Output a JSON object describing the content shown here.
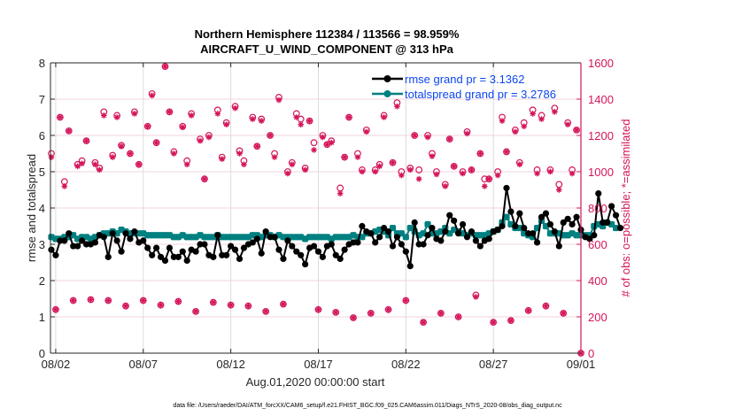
{
  "chart_data": {
    "type": "line",
    "title": "Northern Hemisphere 112384 / 113566 = 98.959%",
    "subtitle": "AIRCRAFT_U_WIND_COMPONENT @ 313 hPa",
    "xlabel": "Aug.01,2020 00:00:00 start",
    "ylabel": "rmse and totalspread",
    "y2label": "# of obs: o=possible; *=assimilated",
    "xlim_days": [
      0.7,
      31
    ],
    "ylim": [
      0,
      8
    ],
    "y2lim": [
      0,
      1600
    ],
    "yticks": [
      "0",
      "1",
      "2",
      "3",
      "4",
      "5",
      "6",
      "7",
      "8"
    ],
    "y2ticks": [
      "0",
      "200",
      "400",
      "600",
      "800",
      "1000",
      "1200",
      "1400",
      "1600"
    ],
    "xticks": [
      {
        "day": 1,
        "label": "08/02"
      },
      {
        "day": 6,
        "label": "08/07"
      },
      {
        "day": 11,
        "label": "08/12"
      },
      {
        "day": 16,
        "label": "08/17"
      },
      {
        "day": 21,
        "label": "08/22"
      },
      {
        "day": 26,
        "label": "08/27"
      },
      {
        "day": 31,
        "label": "09/01"
      }
    ],
    "grid": true,
    "legend_position": "top-right",
    "legend": [
      {
        "label": "rmse grand pr = 3.1362",
        "color": "#000000"
      },
      {
        "label": "totalspread grand pr = 3.2786",
        "color": "#008080"
      }
    ],
    "x_step_days": 0.25,
    "x_start_day": 0.75,
    "series": [
      {
        "name": "rmse",
        "color": "#000000",
        "values": [
          2.85,
          2.7,
          3.1,
          3.1,
          3.3,
          2.95,
          2.95,
          3.1,
          3.0,
          3.0,
          3.05,
          3.25,
          3.2,
          2.65,
          3.3,
          3.1,
          2.8,
          3.3,
          3.15,
          3.35,
          3.05,
          3.1,
          2.9,
          2.7,
          2.9,
          2.65,
          2.55,
          2.9,
          2.65,
          2.65,
          2.8,
          2.55,
          2.85,
          2.8,
          3.0,
          3.0,
          2.7,
          2.65,
          3.25,
          2.7,
          2.7,
          2.95,
          2.85,
          2.6,
          2.9,
          3.0,
          3.05,
          3.15,
          2.75,
          3.35,
          3.2,
          3.2,
          2.85,
          2.6,
          3.1,
          2.95,
          2.8,
          2.7,
          2.45,
          2.9,
          2.95,
          2.8,
          2.65,
          2.95,
          3.0,
          2.7,
          2.6,
          2.85,
          3.0,
          3.05,
          3.05,
          3.5,
          3.35,
          3.3,
          3.05,
          3.2,
          3.45,
          3.35,
          2.95,
          3.2,
          3.0,
          2.8,
          2.4,
          3.6,
          3.0,
          3.0,
          3.25,
          3.45,
          3.15,
          3.1,
          3.35,
          3.8,
          3.65,
          3.3,
          3.55,
          3.2,
          3.35,
          3.1,
          2.95,
          3.1,
          3.15,
          3.35,
          3.4,
          3.5,
          4.55,
          3.9,
          3.5,
          3.85,
          3.45,
          3.3,
          3.3,
          3.05,
          3.75,
          3.85,
          3.55,
          3.35,
          2.95,
          3.6,
          3.7,
          3.55,
          3.75,
          3.4,
          3.2,
          3.15,
          3.25,
          4.4,
          3.6,
          3.6,
          4.05,
          3.8,
          3.45
        ]
      },
      {
        "name": "totalspread",
        "color": "#008080",
        "values": [
          3.2,
          3.15,
          3.15,
          3.2,
          3.2,
          3.25,
          3.15,
          3.2,
          3.2,
          3.15,
          3.2,
          3.25,
          3.3,
          3.3,
          3.35,
          3.3,
          3.4,
          3.35,
          3.3,
          3.3,
          3.3,
          3.3,
          3.25,
          3.25,
          3.25,
          3.25,
          3.25,
          3.25,
          3.2,
          3.2,
          3.25,
          3.2,
          3.2,
          3.2,
          3.25,
          3.2,
          3.2,
          3.2,
          3.25,
          3.2,
          3.2,
          3.2,
          3.2,
          3.2,
          3.2,
          3.2,
          3.25,
          3.25,
          3.2,
          3.25,
          3.25,
          3.2,
          3.25,
          3.2,
          3.2,
          3.2,
          3.2,
          3.2,
          3.15,
          3.2,
          3.2,
          3.2,
          3.2,
          3.2,
          3.15,
          3.2,
          3.2,
          3.2,
          3.2,
          3.25,
          3.2,
          3.2,
          3.3,
          3.3,
          3.35,
          3.4,
          3.35,
          3.25,
          3.45,
          3.3,
          3.3,
          3.2,
          3.45,
          3.35,
          3.25,
          3.3,
          3.55,
          3.3,
          3.3,
          3.35,
          3.45,
          3.3,
          3.4,
          3.35,
          3.3,
          3.25,
          3.3,
          3.25,
          3.25,
          3.25,
          3.3,
          3.35,
          3.4,
          3.6,
          3.75,
          3.55,
          3.45,
          3.45,
          3.3,
          3.25,
          3.2,
          3.45,
          3.65,
          3.5,
          3.3,
          3.3,
          3.3,
          3.25,
          3.25,
          3.3,
          3.25,
          3.25,
          3.25,
          3.25,
          3.5,
          3.55,
          3.5,
          3.6,
          3.55,
          3.45
        ]
      }
    ],
    "obs_series": [
      {
        "name": "possible",
        "marker": "o",
        "color": "#d4145a"
      },
      {
        "name": "assimilated",
        "marker": "*",
        "color": "#d4145a"
      }
    ],
    "obs_possible": [
      [
        0.75,
        1100
      ],
      [
        1.0,
        240
      ],
      [
        1.25,
        1300
      ],
      [
        1.5,
        945
      ],
      [
        1.75,
        1225
      ],
      [
        2.0,
        290
      ],
      [
        2.25,
        1040
      ],
      [
        2.5,
        1060
      ],
      [
        2.75,
        1170
      ],
      [
        3.0,
        295
      ],
      [
        3.25,
        1050
      ],
      [
        3.5,
        1020
      ],
      [
        3.75,
        1330
      ],
      [
        4.0,
        290
      ],
      [
        4.25,
        1090
      ],
      [
        4.5,
        1310
      ],
      [
        4.75,
        1145
      ],
      [
        5.0,
        260
      ],
      [
        5.25,
        1100
      ],
      [
        5.5,
        1330
      ],
      [
        5.75,
        1040
      ],
      [
        6.0,
        290
      ],
      [
        6.25,
        1250
      ],
      [
        6.5,
        1430
      ],
      [
        6.75,
        1160
      ],
      [
        7.0,
        265
      ],
      [
        7.25,
        1580
      ],
      [
        7.5,
        1330
      ],
      [
        7.75,
        1110
      ],
      [
        8.0,
        285
      ],
      [
        8.25,
        1250
      ],
      [
        8.5,
        1060
      ],
      [
        8.75,
        1320
      ],
      [
        9.0,
        230
      ],
      [
        9.25,
        1180
      ],
      [
        9.5,
        960
      ],
      [
        9.75,
        1200
      ],
      [
        10.0,
        280
      ],
      [
        10.25,
        1340
      ],
      [
        10.5,
        1080
      ],
      [
        10.75,
        1270
      ],
      [
        11.0,
        265
      ],
      [
        11.25,
        1360
      ],
      [
        11.5,
        1115
      ],
      [
        11.75,
        1060
      ],
      [
        12.0,
        260
      ],
      [
        12.25,
        1300
      ],
      [
        12.5,
        1140
      ],
      [
        12.75,
        1290
      ],
      [
        13.0,
        230
      ],
      [
        13.25,
        1200
      ],
      [
        13.5,
        1100
      ],
      [
        13.75,
        1410
      ],
      [
        14.0,
        270
      ],
      [
        14.25,
        1000
      ],
      [
        14.5,
        1050
      ],
      [
        14.75,
        1320
      ],
      [
        15.0,
        1290
      ],
      [
        15.25,
        1020
      ],
      [
        15.5,
        1280
      ],
      [
        15.75,
        1160
      ],
      [
        16.0,
        240
      ],
      [
        16.25,
        1200
      ],
      [
        16.5,
        1150
      ],
      [
        16.75,
        1170
      ],
      [
        17.0,
        225
      ],
      [
        17.25,
        910
      ],
      [
        17.5,
        1080
      ],
      [
        17.75,
        1300
      ],
      [
        18.0,
        195
      ],
      [
        18.25,
        1100
      ],
      [
        18.5,
        1010
      ],
      [
        18.75,
        1230
      ],
      [
        19.0,
        220
      ],
      [
        19.25,
        1010
      ],
      [
        19.5,
        1040
      ],
      [
        19.75,
        1310
      ],
      [
        20.0,
        240
      ],
      [
        20.25,
        1050
      ],
      [
        20.5,
        1380
      ],
      [
        20.75,
        1000
      ],
      [
        21.0,
        290
      ],
      [
        21.25,
        1020
      ],
      [
        21.5,
        1200
      ],
      [
        21.75,
        1010
      ],
      [
        22.0,
        170
      ],
      [
        22.25,
        1200
      ],
      [
        22.5,
        1100
      ],
      [
        22.75,
        1000
      ],
      [
        23.0,
        220
      ],
      [
        23.25,
        930
      ],
      [
        23.5,
        1180
      ],
      [
        23.75,
        1030
      ],
      [
        24.0,
        200
      ],
      [
        24.25,
        1000
      ],
      [
        24.5,
        1220
      ],
      [
        24.75,
        1010
      ],
      [
        25.0,
        320
      ],
      [
        25.25,
        1100
      ],
      [
        25.5,
        960
      ],
      [
        25.75,
        960
      ],
      [
        26.0,
        170
      ],
      [
        26.25,
        1000
      ],
      [
        26.5,
        1300
      ],
      [
        26.75,
        1110
      ],
      [
        27.0,
        180
      ],
      [
        27.25,
        1230
      ],
      [
        27.5,
        1050
      ],
      [
        27.75,
        1270
      ],
      [
        28.0,
        235
      ],
      [
        28.25,
        1340
      ],
      [
        28.5,
        1010
      ],
      [
        28.75,
        1310
      ],
      [
        29.0,
        260
      ],
      [
        29.25,
        1010
      ],
      [
        29.5,
        1350
      ],
      [
        29.75,
        930
      ],
      [
        30.0,
        220
      ],
      [
        30.25,
        1270
      ],
      [
        30.5,
        1010
      ],
      [
        30.75,
        1230
      ],
      [
        31.0,
        0
      ]
    ],
    "obs_assimilated": [
      [
        0.75,
        1080
      ],
      [
        1.0,
        240
      ],
      [
        1.25,
        1300
      ],
      [
        1.5,
        920
      ],
      [
        1.75,
        1225
      ],
      [
        2.0,
        290
      ],
      [
        2.25,
        1030
      ],
      [
        2.5,
        1045
      ],
      [
        2.75,
        1170
      ],
      [
        3.0,
        295
      ],
      [
        3.25,
        1040
      ],
      [
        3.5,
        1010
      ],
      [
        3.75,
        1310
      ],
      [
        4.0,
        290
      ],
      [
        4.25,
        1080
      ],
      [
        4.5,
        1300
      ],
      [
        4.75,
        1140
      ],
      [
        5.0,
        260
      ],
      [
        5.25,
        1100
      ],
      [
        5.5,
        1320
      ],
      [
        5.75,
        1040
      ],
      [
        6.0,
        290
      ],
      [
        6.25,
        1250
      ],
      [
        6.5,
        1420
      ],
      [
        6.75,
        1160
      ],
      [
        7.0,
        265
      ],
      [
        7.25,
        1580
      ],
      [
        7.5,
        1330
      ],
      [
        7.75,
        1100
      ],
      [
        8.0,
        285
      ],
      [
        8.25,
        1245
      ],
      [
        8.5,
        1040
      ],
      [
        8.75,
        1310
      ],
      [
        9.0,
        230
      ],
      [
        9.25,
        1170
      ],
      [
        9.5,
        960
      ],
      [
        9.75,
        1190
      ],
      [
        10.0,
        280
      ],
      [
        10.25,
        1320
      ],
      [
        10.5,
        1070
      ],
      [
        10.75,
        1260
      ],
      [
        11.0,
        265
      ],
      [
        11.25,
        1350
      ],
      [
        11.5,
        1100
      ],
      [
        11.75,
        1040
      ],
      [
        12.0,
        260
      ],
      [
        12.25,
        1290
      ],
      [
        12.5,
        1140
      ],
      [
        12.75,
        1280
      ],
      [
        13.0,
        230
      ],
      [
        13.25,
        1200
      ],
      [
        13.5,
        1080
      ],
      [
        13.75,
        1395
      ],
      [
        14.0,
        270
      ],
      [
        14.25,
        990
      ],
      [
        14.5,
        1040
      ],
      [
        14.75,
        1300
      ],
      [
        15.0,
        1260
      ],
      [
        15.25,
        1010
      ],
      [
        15.5,
        1280
      ],
      [
        15.75,
        1120
      ],
      [
        16.0,
        240
      ],
      [
        16.25,
        1190
      ],
      [
        16.5,
        1150
      ],
      [
        16.75,
        1160
      ],
      [
        17.0,
        225
      ],
      [
        17.25,
        880
      ],
      [
        17.5,
        1080
      ],
      [
        17.75,
        1300
      ],
      [
        18.0,
        195
      ],
      [
        18.25,
        1080
      ],
      [
        18.5,
        1000
      ],
      [
        18.75,
        1220
      ],
      [
        19.0,
        220
      ],
      [
        19.25,
        1000
      ],
      [
        19.5,
        1030
      ],
      [
        19.75,
        1300
      ],
      [
        20.0,
        240
      ],
      [
        20.25,
        1050
      ],
      [
        20.5,
        1360
      ],
      [
        20.75,
        980
      ],
      [
        21.0,
        290
      ],
      [
        21.25,
        1010
      ],
      [
        21.5,
        1200
      ],
      [
        21.75,
        960
      ],
      [
        22.0,
        170
      ],
      [
        22.25,
        1190
      ],
      [
        22.5,
        1085
      ],
      [
        22.75,
        985
      ],
      [
        23.0,
        220
      ],
      [
        23.25,
        920
      ],
      [
        23.5,
        1180
      ],
      [
        23.75,
        1030
      ],
      [
        24.0,
        200
      ],
      [
        24.25,
        990
      ],
      [
        24.5,
        1210
      ],
      [
        24.75,
        1010
      ],
      [
        25.0,
        310
      ],
      [
        25.25,
        1100
      ],
      [
        25.5,
        920
      ],
      [
        25.75,
        960
      ],
      [
        26.0,
        170
      ],
      [
        26.25,
        980
      ],
      [
        26.5,
        1280
      ],
      [
        26.75,
        1110
      ],
      [
        27.0,
        180
      ],
      [
        27.25,
        1220
      ],
      [
        27.5,
        1040
      ],
      [
        27.75,
        1250
      ],
      [
        28.0,
        235
      ],
      [
        28.25,
        1320
      ],
      [
        28.5,
        990
      ],
      [
        28.75,
        1290
      ],
      [
        29.0,
        260
      ],
      [
        29.25,
        1000
      ],
      [
        29.5,
        1330
      ],
      [
        29.75,
        900
      ],
      [
        30.0,
        220
      ],
      [
        30.25,
        1260
      ],
      [
        30.5,
        990
      ],
      [
        30.75,
        1230
      ],
      [
        31.0,
        0
      ]
    ]
  },
  "footer": {
    "data_file": "data file: /Users/raeder/DAI/ATM_forcXX/CAM6_setup/f.e21.FHIST_BGC.f09_025.CAM6assim.011/Diags_NTrS_2020-08/obs_diag_output.nc"
  }
}
